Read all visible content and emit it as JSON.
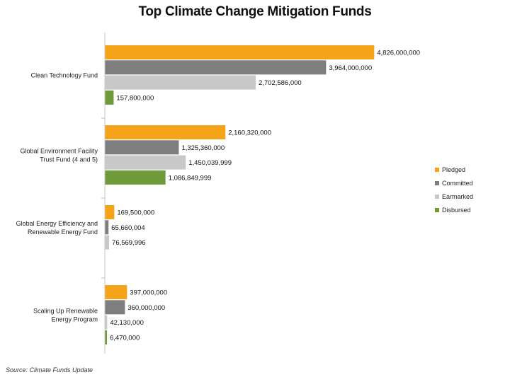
{
  "chart_data": {
    "type": "bar",
    "orientation": "horizontal",
    "title": "Top Climate Change Mitigation Funds",
    "source": "Source: Climate Funds Update",
    "legend_position": "right",
    "grid": false,
    "xlim": [
      0,
      5000000000
    ],
    "categories": [
      "Clean Technology Fund",
      "Global Environment Facility Trust Fund (4 and 5)",
      "Global Energy Efficiency and Renewable Energy Fund",
      "Scaling Up Renewable Energy Program"
    ],
    "category_lines": [
      [
        "Clean Technology Fund"
      ],
      [
        "Global Environment Facility",
        "Trust Fund (4 and 5)"
      ],
      [
        "Global Energy Efficiency and",
        "Renewable Energy Fund"
      ],
      [
        "Scaling Up Renewable",
        "Energy Program"
      ]
    ],
    "series": [
      {
        "name": "Pledged",
        "color": "#F5A318",
        "values": [
          4826000000,
          2160320000,
          169500000,
          397000000
        ],
        "labels": [
          "4,826,000,000",
          "2,160,320,000",
          "169,500,000",
          "397,000,000"
        ]
      },
      {
        "name": "Committed",
        "color": "#7E7E7E",
        "values": [
          3964000000,
          1325360000,
          65660004,
          360000000
        ],
        "labels": [
          "3,964,000,000",
          "1,325,360,000",
          "65,660,004",
          "360,000,000"
        ]
      },
      {
        "name": "Earmarked",
        "color": "#C8C8C8",
        "values": [
          2702586000,
          1450039999,
          76569996,
          42130000
        ],
        "labels": [
          "2,702,586,000",
          "1,450,039,999",
          "76,569,996",
          "42,130,000"
        ]
      },
      {
        "name": "Disbursed",
        "color": "#6E9A3A",
        "values": [
          157800000,
          1086849999,
          null,
          6470000
        ],
        "labels": [
          "157,800,000",
          "1,086,849,999",
          null,
          "6,470,000"
        ]
      }
    ]
  }
}
